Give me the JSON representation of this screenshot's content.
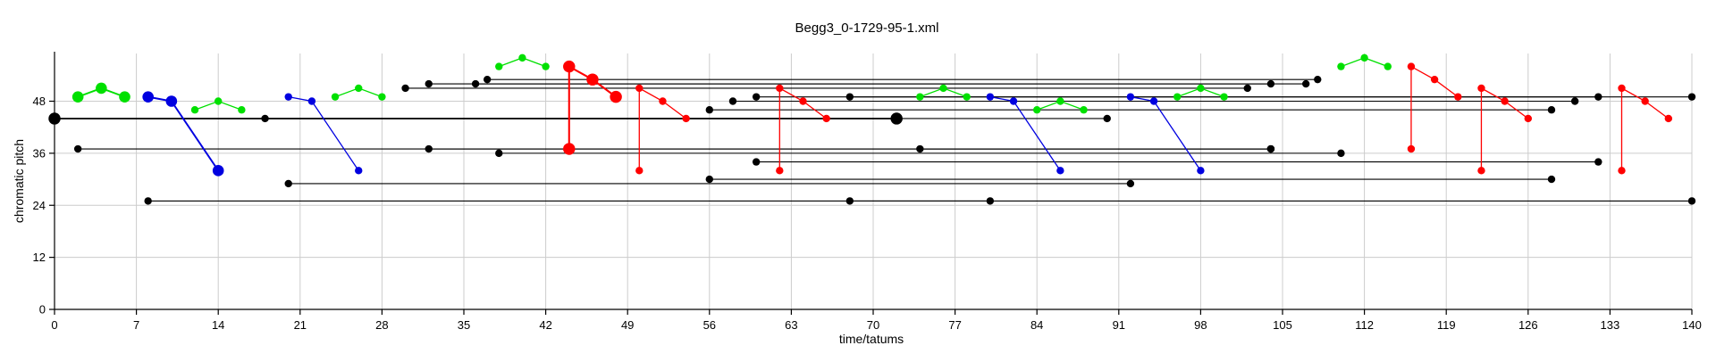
{
  "chart_data": {
    "type": "line",
    "title": "Begg3_0-1729-95-1.xml",
    "xlabel": "time/tatums",
    "ylabel": "chromatic pitch",
    "xlim": [
      0,
      140
    ],
    "ylim": [
      0,
      59
    ],
    "xticks": [
      0,
      7,
      14,
      21,
      28,
      35,
      42,
      49,
      56,
      63,
      70,
      77,
      84,
      91,
      98,
      105,
      112,
      119,
      126,
      133,
      140
    ],
    "yticks": [
      0,
      12,
      24,
      36,
      48
    ],
    "grid": true,
    "colors": {
      "black": "#000000",
      "green": "#00e000",
      "blue": "#0000e0",
      "red": "#ff0000",
      "grid": "#cccccc"
    },
    "series": [
      {
        "color": "black",
        "emphasis": 1.6,
        "points": [
          [
            0,
            44
          ],
          [
            72,
            44
          ]
        ]
      },
      {
        "color": "black",
        "points": [
          [
            18,
            44
          ],
          [
            72,
            44
          ]
        ]
      },
      {
        "color": "black",
        "points": [
          [
            2,
            37
          ],
          [
            104,
            37
          ]
        ]
      },
      {
        "color": "black",
        "points": [
          [
            8,
            25
          ],
          [
            140,
            25
          ]
        ]
      },
      {
        "color": "black",
        "points": [
          [
            20,
            29
          ],
          [
            92,
            29
          ]
        ]
      },
      {
        "color": "black",
        "points": [
          [
            30,
            51
          ],
          [
            102,
            51
          ]
        ]
      },
      {
        "color": "black",
        "points": [
          [
            32,
            52
          ],
          [
            104,
            52
          ]
        ]
      },
      {
        "color": "black",
        "points": [
          [
            36,
            52
          ],
          [
            107,
            52
          ]
        ]
      },
      {
        "color": "black",
        "points": [
          [
            37,
            53
          ],
          [
            108,
            53
          ]
        ]
      },
      {
        "color": "black",
        "points": [
          [
            32,
            37
          ],
          [
            104,
            37
          ]
        ]
      },
      {
        "color": "black",
        "points": [
          [
            38,
            36
          ],
          [
            110,
            36
          ]
        ]
      },
      {
        "color": "black",
        "points": [
          [
            56,
            46
          ],
          [
            128,
            46
          ]
        ]
      },
      {
        "color": "black",
        "points": [
          [
            58,
            48
          ],
          [
            130,
            48
          ]
        ]
      },
      {
        "color": "black",
        "points": [
          [
            60,
            49
          ],
          [
            132,
            49
          ]
        ]
      },
      {
        "color": "black",
        "points": [
          [
            68,
            49
          ],
          [
            140,
            49
          ]
        ]
      },
      {
        "color": "black",
        "points": [
          [
            56,
            30
          ],
          [
            128,
            30
          ]
        ]
      },
      {
        "color": "black",
        "points": [
          [
            60,
            34
          ],
          [
            132,
            34
          ]
        ]
      },
      {
        "color": "black",
        "points": [
          [
            74,
            37
          ],
          [
            104,
            37
          ]
        ]
      },
      {
        "color": "black",
        "points": [
          [
            68,
            25
          ],
          [
            80,
            25
          ]
        ]
      },
      {
        "color": "black",
        "points": [
          [
            72,
            44
          ],
          [
            90,
            44
          ]
        ]
      },
      {
        "color": "green",
        "emphasis": 1.5,
        "points": [
          [
            2,
            49
          ],
          [
            4,
            51
          ],
          [
            6,
            49
          ]
        ]
      },
      {
        "color": "green",
        "points": [
          [
            12,
            46
          ],
          [
            14,
            48
          ],
          [
            16,
            46
          ]
        ]
      },
      {
        "color": "green",
        "points": [
          [
            24,
            49
          ],
          [
            26,
            51
          ],
          [
            28,
            49
          ]
        ]
      },
      {
        "color": "green",
        "points": [
          [
            38,
            56
          ],
          [
            40,
            58
          ],
          [
            42,
            56
          ]
        ]
      },
      {
        "color": "green",
        "points": [
          [
            74,
            49
          ],
          [
            76,
            51
          ],
          [
            78,
            49
          ]
        ]
      },
      {
        "color": "green",
        "points": [
          [
            84,
            46
          ],
          [
            86,
            48
          ],
          [
            88,
            46
          ]
        ]
      },
      {
        "color": "green",
        "points": [
          [
            96,
            49
          ],
          [
            98,
            51
          ],
          [
            100,
            49
          ]
        ]
      },
      {
        "color": "green",
        "points": [
          [
            110,
            56
          ],
          [
            112,
            58
          ],
          [
            114,
            56
          ]
        ]
      },
      {
        "color": "blue",
        "emphasis": 1.5,
        "points": [
          [
            8,
            49
          ],
          [
            10,
            48
          ],
          [
            14,
            32
          ]
        ]
      },
      {
        "color": "blue",
        "points": [
          [
            20,
            49
          ],
          [
            22,
            48
          ],
          [
            26,
            32
          ]
        ]
      },
      {
        "color": "blue",
        "points": [
          [
            80,
            49
          ],
          [
            82,
            48
          ],
          [
            86,
            32
          ]
        ]
      },
      {
        "color": "blue",
        "points": [
          [
            92,
            49
          ],
          [
            94,
            48
          ],
          [
            98,
            32
          ]
        ]
      },
      {
        "color": "red",
        "emphasis": 1.6,
        "points": [
          [
            44,
            37
          ],
          [
            44,
            56
          ],
          [
            46,
            53
          ],
          [
            48,
            49
          ]
        ]
      },
      {
        "color": "red",
        "points": [
          [
            50,
            32
          ],
          [
            50,
            51
          ],
          [
            52,
            48
          ],
          [
            54,
            44
          ]
        ]
      },
      {
        "color": "red",
        "points": [
          [
            62,
            32
          ],
          [
            62,
            51
          ],
          [
            64,
            48
          ],
          [
            66,
            44
          ]
        ]
      },
      {
        "color": "red",
        "points": [
          [
            116,
            37
          ],
          [
            116,
            56
          ],
          [
            118,
            53
          ],
          [
            120,
            49
          ]
        ]
      },
      {
        "color": "red",
        "points": [
          [
            122,
            32
          ],
          [
            122,
            51
          ],
          [
            124,
            48
          ],
          [
            126,
            44
          ]
        ]
      },
      {
        "color": "red",
        "points": [
          [
            134,
            32
          ],
          [
            134,
            51
          ],
          [
            136,
            48
          ],
          [
            138,
            44
          ]
        ]
      }
    ]
  }
}
